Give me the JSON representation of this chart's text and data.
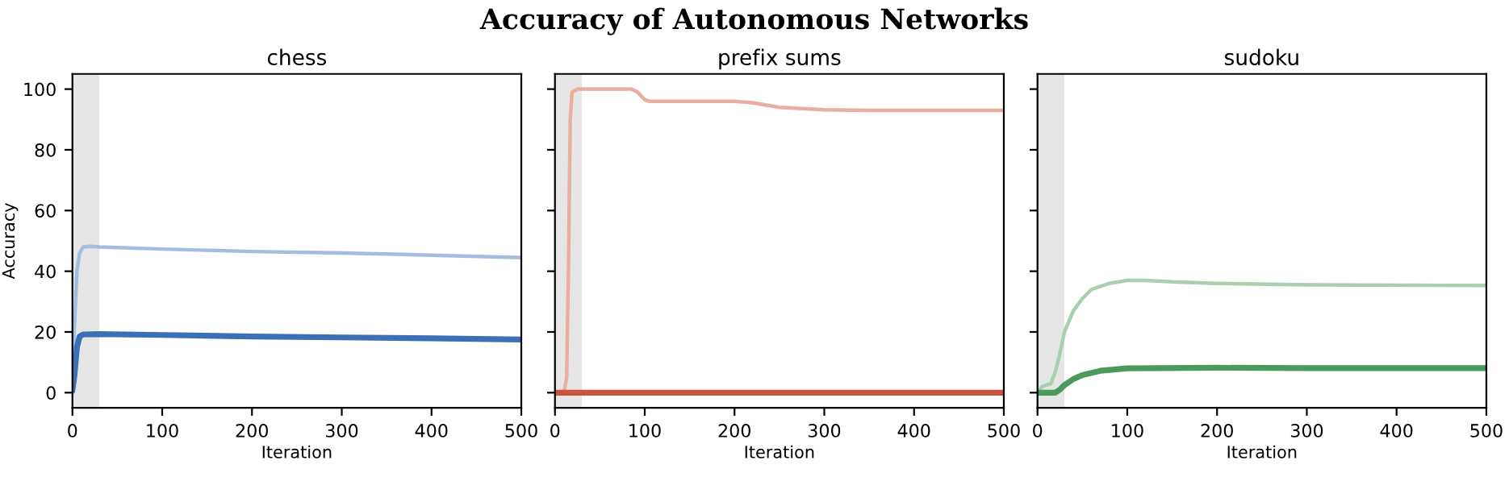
{
  "chart_data": [
    {
      "type": "line",
      "title": "chess",
      "xlabel": "Iteration",
      "ylabel": "Accuracy",
      "annotations": [
        "Accuracy of Autonomous Networks"
      ],
      "xlim": [
        0,
        500
      ],
      "ylim": [
        -5,
        105
      ],
      "xticks": [
        0,
        100,
        200,
        300,
        400,
        500
      ],
      "yticks": [
        0,
        20,
        40,
        60,
        80,
        100
      ],
      "grid": false,
      "bands": [
        {
          "axis": "x",
          "from": 0,
          "to": 30,
          "color": "#e6e6e6"
        }
      ],
      "series": [
        {
          "color": "#a3bde0",
          "x": [
            0,
            2,
            5,
            8,
            12,
            20,
            30,
            100,
            200,
            300,
            400,
            500
          ],
          "values": [
            0,
            20,
            40,
            46,
            48,
            48.2,
            48,
            47.3,
            46.5,
            46,
            45.3,
            44.5
          ]
        },
        {
          "color": "#3b6fb6",
          "x": [
            0,
            2,
            5,
            8,
            12,
            30,
            100,
            200,
            300,
            400,
            500
          ],
          "values": [
            1,
            5,
            15,
            18.5,
            19.2,
            19.3,
            19,
            18.5,
            18.2,
            17.9,
            17.5
          ]
        }
      ]
    },
    {
      "type": "line",
      "title": "prefix sums",
      "xlabel": "Iteration",
      "xlim": [
        0,
        500
      ],
      "ylim": [
        -5,
        105
      ],
      "xticks": [
        0,
        100,
        200,
        300,
        400,
        500
      ],
      "yticks": [
        0,
        20,
        40,
        60,
        80,
        100
      ],
      "tick_labels": "x",
      "grid": false,
      "bands": [
        {
          "axis": "x",
          "from": 0,
          "to": 30,
          "color": "#e6e6e6"
        }
      ],
      "series": [
        {
          "color": "#e8aea0",
          "x": [
            0,
            10,
            13,
            15,
            17,
            19,
            25,
            85,
            92,
            100,
            105,
            200,
            220,
            250,
            300,
            350,
            500
          ],
          "values": [
            0,
            0,
            5,
            40,
            90,
            99,
            100,
            100,
            99,
            96.5,
            96,
            96,
            95.5,
            94,
            93.2,
            93,
            93
          ]
        },
        {
          "color": "#c8553d",
          "x": [
            0,
            100,
            200,
            300,
            400,
            500
          ],
          "values": [
            0,
            0,
            0,
            0,
            0,
            0
          ]
        }
      ]
    },
    {
      "type": "line",
      "title": "sudoku",
      "xlabel": "Iteration",
      "xlim": [
        0,
        500
      ],
      "ylim": [
        -5,
        105
      ],
      "xticks": [
        0,
        100,
        200,
        300,
        400,
        500
      ],
      "yticks": [
        0,
        20,
        40,
        60,
        80,
        100
      ],
      "tick_labels": "x",
      "grid": false,
      "bands": [
        {
          "axis": "x",
          "from": 0,
          "to": 30,
          "color": "#e6e6e6"
        }
      ],
      "series": [
        {
          "color": "#a8cfae",
          "x": [
            0,
            5,
            10,
            15,
            20,
            25,
            30,
            40,
            50,
            60,
            80,
            100,
            120,
            150,
            200,
            300,
            500
          ],
          "values": [
            0,
            2,
            2.5,
            3,
            7,
            13,
            20,
            27,
            31,
            34,
            36,
            37,
            37,
            36.5,
            36,
            35.5,
            35.3
          ]
        },
        {
          "color": "#4a9a5e",
          "x": [
            0,
            20,
            25,
            30,
            40,
            50,
            70,
            100,
            200,
            300,
            500
          ],
          "values": [
            0,
            0,
            1,
            2.5,
            4.5,
            5.8,
            7.2,
            8,
            8.2,
            8.1,
            8.1
          ]
        }
      ]
    }
  ]
}
